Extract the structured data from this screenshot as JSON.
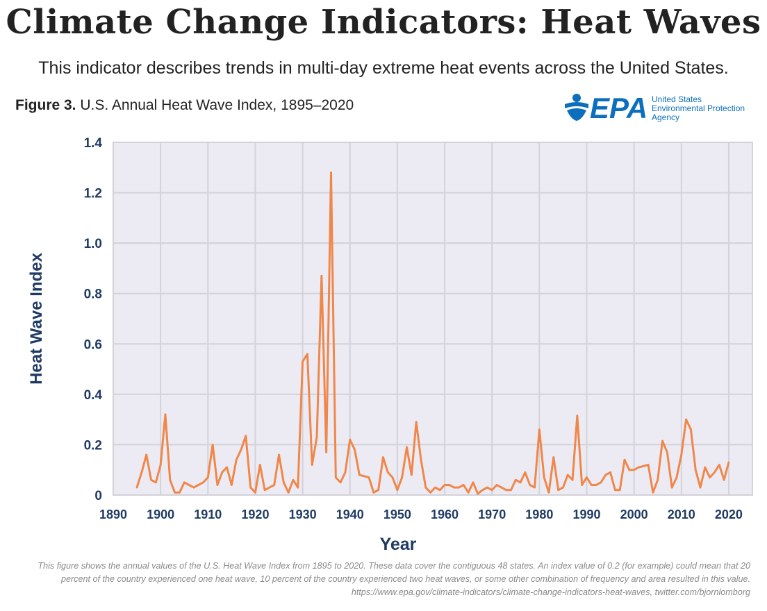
{
  "header": {
    "title": "Climate Change Indicators: Heat Waves",
    "subtitle": "This indicator describes trends in multi-day extreme heat events across the United States.",
    "figure_label": "Figure 3.",
    "figure_title": "U.S. Annual Heat Wave Index, 1895–2020"
  },
  "logo": {
    "icon": "epa-flower-icon",
    "wordmark": "EPA",
    "line1": "United States",
    "line2": "Environmental Protection",
    "line3": "Agency",
    "color": "#0c6fbd"
  },
  "footnote": "This figure shows the annual values of the U.S. Heat Wave Index from 1895 to 2020. These data cover the contiguous 48 states. An index value of 0.2 (for example) could mean that 20 percent of the country experienced one heat wave, 10 percent of the country experienced two heat waves, or some other combination of frequency and area resulted in this value. https://www.epa.gov/climate-indicators/climate-change-indicators-heat-waves, twitter.com/bjornlomborg",
  "chart_data": {
    "type": "line",
    "title": "U.S. Annual Heat Wave Index, 1895–2020",
    "xlabel": "Year",
    "ylabel": "Heat Wave Index",
    "xlim": [
      1890,
      2025
    ],
    "ylim": [
      0,
      1.4
    ],
    "xticks": [
      1890,
      1900,
      1910,
      1920,
      1930,
      1940,
      1950,
      1960,
      1970,
      1980,
      1990,
      2000,
      2010,
      2020
    ],
    "yticks": [
      0,
      0.2,
      0.4,
      0.6,
      0.8,
      1.0,
      1.2,
      1.4
    ],
    "ytick_labels": [
      "0",
      "0.2",
      "0.4",
      "0.6",
      "0.8",
      "1.0",
      "1.2",
      "1.4"
    ],
    "grid": true,
    "colors": {
      "line": "#f0874a",
      "plot_bg": "#ecebf3",
      "grid": "#d2d2d8",
      "axis_text": "#1f3b63"
    },
    "x_start": 1895,
    "series": [
      {
        "name": "Heat Wave Index",
        "values": [
          0.03,
          0.09,
          0.16,
          0.06,
          0.05,
          0.12,
          0.32,
          0.06,
          0.01,
          0.01,
          0.05,
          0.04,
          0.03,
          0.04,
          0.05,
          0.07,
          0.2,
          0.04,
          0.09,
          0.11,
          0.04,
          0.14,
          0.18,
          0.235,
          0.03,
          0.01,
          0.12,
          0.02,
          0.03,
          0.04,
          0.16,
          0.05,
          0.01,
          0.06,
          0.03,
          0.53,
          0.56,
          0.12,
          0.23,
          0.87,
          0.17,
          1.28,
          0.07,
          0.05,
          0.09,
          0.22,
          0.18,
          0.08,
          0.075,
          0.07,
          0.01,
          0.02,
          0.15,
          0.09,
          0.07,
          0.02,
          0.07,
          0.19,
          0.08,
          0.29,
          0.14,
          0.03,
          0.01,
          0.03,
          0.02,
          0.04,
          0.04,
          0.03,
          0.03,
          0.04,
          0.01,
          0.05,
          0.005,
          0.02,
          0.03,
          0.02,
          0.04,
          0.03,
          0.02,
          0.02,
          0.06,
          0.05,
          0.09,
          0.04,
          0.03,
          0.26,
          0.07,
          0.01,
          0.15,
          0.02,
          0.03,
          0.08,
          0.06,
          0.315,
          0.04,
          0.07,
          0.04,
          0.04,
          0.05,
          0.08,
          0.09,
          0.02,
          0.02,
          0.14,
          0.1,
          0.1,
          0.11,
          0.115,
          0.12,
          0.01,
          0.06,
          0.215,
          0.17,
          0.03,
          0.07,
          0.16,
          0.3,
          0.26,
          0.1,
          0.03,
          0.11,
          0.07,
          0.09,
          0.12,
          0.06,
          0.13
        ]
      }
    ]
  }
}
